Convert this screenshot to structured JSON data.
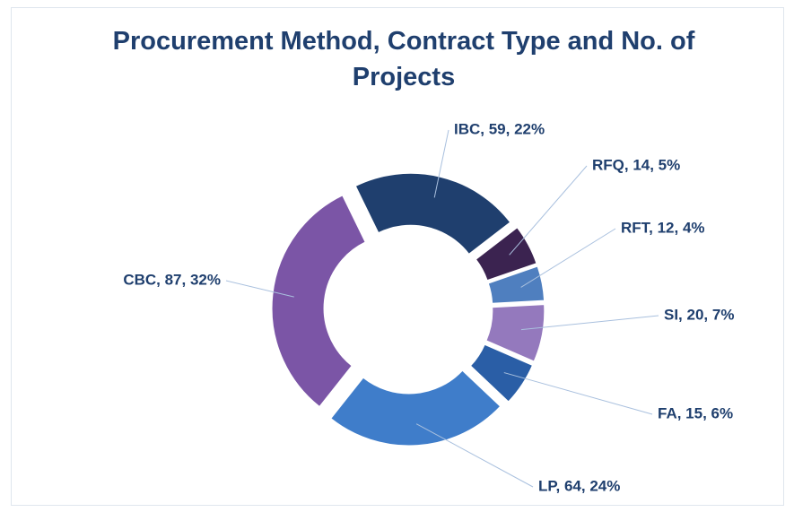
{
  "chart_data": {
    "type": "pie",
    "donut": true,
    "title": "Procurement Method, Contract Type and No. of Projects",
    "categories": [
      "IBC",
      "RFQ",
      "RFT",
      "SI",
      "FA",
      "LP",
      "CBC"
    ],
    "values": [
      59,
      14,
      12,
      20,
      15,
      64,
      87
    ],
    "value_labels": [
      "IBC, 59, 22%",
      "RFQ, 14, 5%",
      "RFT, 12, 4%",
      "SI, 20, 7%",
      "FA, 15, 6%",
      "LP, 64, 24%",
      "CBC, 87, 32%"
    ],
    "colors": [
      "#1f3f6e",
      "#3b2350",
      "#4f7fbf",
      "#9479bd",
      "#2a5ea6",
      "#3f7dca",
      "#7b55a6"
    ]
  }
}
